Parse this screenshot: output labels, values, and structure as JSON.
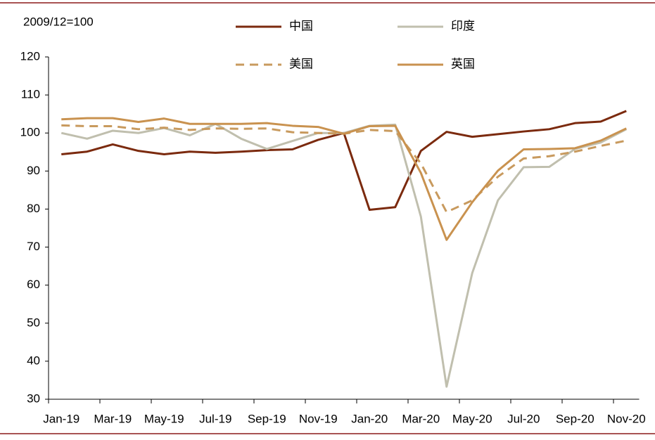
{
  "chart_data": {
    "type": "line",
    "annotation": "2009/12=100",
    "categories": [
      "Jan-19",
      null,
      "Mar-19",
      null,
      "May-19",
      null,
      "Jul-19",
      null,
      "Sep-19",
      null,
      "Nov-19",
      null,
      "Jan-20",
      null,
      "Mar-20",
      null,
      "May-20",
      null,
      "Jul-20",
      null,
      "Sep-20",
      null,
      "Nov-20"
    ],
    "series": [
      {
        "name": "中国",
        "color": "#7b2a0e",
        "dash": false,
        "values": [
          94.4,
          95.1,
          97.0,
          95.3,
          94.4,
          95.1,
          94.8,
          95.1,
          95.5,
          95.7,
          98.2,
          100.0,
          79.8,
          80.5,
          95.3,
          100.3,
          99.0,
          99.7,
          100.4,
          101.0,
          102.6,
          103.0,
          105.8
        ]
      },
      {
        "name": "印度",
        "color": "#c0bfae",
        "dash": false,
        "values": [
          100.0,
          98.5,
          100.6,
          100.0,
          101.3,
          99.4,
          102.4,
          98.5,
          95.8,
          97.9,
          100.0,
          100.0,
          101.9,
          102.2,
          78.0,
          33.3,
          63.2,
          82.3,
          91.0,
          91.1,
          95.8,
          97.5,
          101.0
        ]
      },
      {
        "name": "美国",
        "color": "#c89a5e",
        "dash": true,
        "values": [
          102.0,
          101.8,
          101.8,
          101.0,
          101.4,
          100.8,
          101.2,
          101.1,
          101.2,
          100.2,
          100.0,
          99.8,
          100.8,
          100.5,
          92.0,
          79.2,
          82.3,
          88.5,
          93.3,
          93.9,
          95.1,
          96.6,
          98.0
        ]
      },
      {
        "name": "英国",
        "color": "#c9924f",
        "dash": false,
        "values": [
          103.6,
          103.9,
          103.9,
          102.9,
          103.8,
          102.4,
          102.4,
          102.4,
          102.6,
          101.9,
          101.6,
          99.8,
          101.8,
          101.9,
          89.5,
          71.9,
          81.8,
          90.1,
          95.7,
          95.8,
          96.0,
          98.0,
          101.2
        ]
      }
    ],
    "ylim": [
      30,
      120
    ],
    "yticks": [
      30,
      40,
      50,
      60,
      70,
      80,
      90,
      100,
      110,
      120
    ],
    "grid": false
  }
}
